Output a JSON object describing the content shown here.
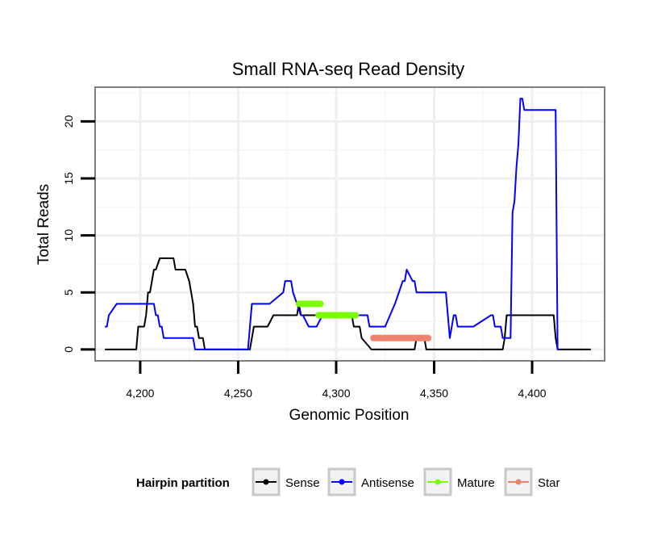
{
  "chart_data": {
    "type": "line",
    "title": "Small RNA-seq Read Density",
    "xlabel": "Genomic Position",
    "ylabel": "Total Reads",
    "xlim": [
      4177,
      4437
    ],
    "ylim": [
      -1,
      23
    ],
    "x_ticks": [
      4200,
      4250,
      4300,
      4350,
      4400
    ],
    "x_tick_labels": [
      "4,200",
      "4,250",
      "4,300",
      "4,350",
      "4,400"
    ],
    "y_ticks": [
      0,
      5,
      10,
      15,
      20
    ],
    "y_tick_labels": [
      "0",
      "5",
      "10",
      "15",
      "20"
    ],
    "grid": true,
    "legend": {
      "title": "Hairpin partition",
      "position": "bottom",
      "entries": [
        {
          "name": "Sense",
          "color": "#000000"
        },
        {
          "name": "Antisense",
          "color": "#0000ff"
        },
        {
          "name": "Mature",
          "color": "#7cfc00"
        },
        {
          "name": "Star",
          "color": "#f08070"
        }
      ]
    },
    "series": [
      {
        "name": "Sense",
        "color": "#000000",
        "x": [
          4182,
          4198,
          4199,
          4202,
          4203,
          4204,
          4205,
          4206,
          4207,
          4208,
          4210,
          4211,
          4212,
          4217,
          4218,
          4222,
          4223,
          4225,
          4226,
          4227,
          4228,
          4229,
          4230,
          4231,
          4232,
          4233,
          4240,
          4241,
          4256,
          4257,
          4258,
          4264,
          4265,
          4268,
          4269,
          4280,
          4281,
          4282,
          4283,
          4290,
          4291,
          4308,
          4309,
          4312,
          4313,
          4318,
          4319,
          4320,
          4321,
          4340,
          4341,
          4345,
          4346,
          4385,
          4386,
          4387,
          4411,
          4412,
          4413,
          4430
        ],
        "values": [
          0,
          0,
          2,
          2,
          3,
          5,
          5,
          6,
          7,
          7,
          8,
          8,
          8,
          8,
          7,
          7,
          7,
          6,
          5,
          4,
          2,
          2,
          1,
          1,
          1,
          0,
          0,
          0,
          0,
          1,
          2,
          2,
          2,
          3,
          3,
          3,
          4,
          3,
          3,
          3,
          3,
          3,
          2,
          2,
          1,
          0,
          0,
          0,
          0,
          0,
          1,
          1,
          0,
          0,
          1,
          3,
          3,
          1,
          0,
          0
        ]
      },
      {
        "name": "Antisense",
        "color": "#0000ff",
        "x": [
          4182,
          4183,
          4184,
          4188,
          4189,
          4199,
          4200,
          4206,
          4207,
          4208,
          4209,
          4210,
          4211,
          4212,
          4213,
          4227,
          4228,
          4238,
          4239,
          4255,
          4256,
          4257,
          4262,
          4263,
          4265,
          4266,
          4273,
          4274,
          4277,
          4278,
          4282,
          4283,
          4286,
          4290,
          4293,
          4295,
          4296,
          4316,
          4317,
          4318,
          4319,
          4320,
          4321,
          4322,
          4325,
          4330,
          4332,
          4334,
          4335,
          4336,
          4339,
          4340,
          4341,
          4343,
          4344,
          4345,
          4346,
          4347,
          4356,
          4357,
          4358,
          4359,
          4360,
          4361,
          4362,
          4363,
          4368,
          4369,
          4370,
          4379,
          4380,
          4381,
          4382,
          4384,
          4385,
          4386,
          4388,
          4389,
          4390,
          4391,
          4392,
          4393,
          4394,
          4395,
          4396,
          4411,
          4412,
          4413,
          4414
        ],
        "values": [
          2,
          2,
          3,
          4,
          4,
          4,
          4,
          4,
          4,
          3,
          3,
          2,
          2,
          1,
          1,
          1,
          0,
          0,
          0,
          0,
          2,
          4,
          4,
          4,
          4,
          4,
          5,
          6,
          6,
          5,
          3,
          3,
          2,
          2,
          3,
          3,
          3,
          3,
          2,
          2,
          2,
          2,
          2,
          2,
          2,
          4,
          5,
          6,
          6,
          7,
          6,
          6,
          5,
          5,
          5,
          5,
          5,
          5,
          5,
          3,
          1,
          2,
          3,
          3,
          2,
          2,
          2,
          2,
          2,
          3,
          3,
          2,
          2,
          2,
          1,
          1,
          1,
          1,
          12,
          13,
          16,
          18,
          22,
          22,
          21,
          21,
          21,
          0,
          0
        ]
      },
      {
        "name": "Mature",
        "color": "#7cfc00",
        "segments": [
          {
            "x": [
              4281,
              4292
            ],
            "y": 4
          },
          {
            "x": [
              4291,
              4310
            ],
            "y": 3
          }
        ]
      },
      {
        "name": "Star",
        "color": "#f08070",
        "segments": [
          {
            "x": [
              4319,
              4347
            ],
            "y": 1
          }
        ]
      }
    ]
  }
}
